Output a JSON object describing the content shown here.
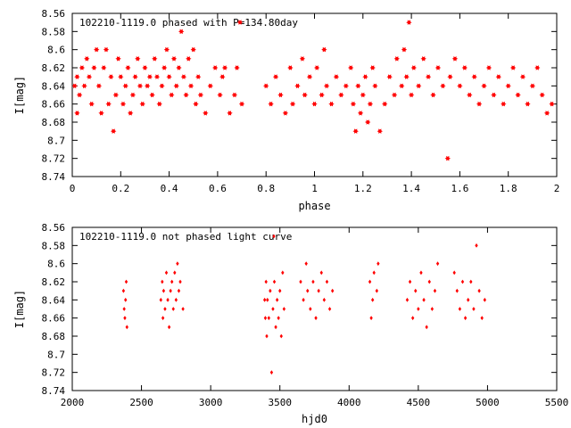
{
  "chart_data": [
    {
      "type": "scatter",
      "title": "102210-1119.0 phased with P=134.80day",
      "xlabel": "phase",
      "ylabel": "I[mag]",
      "xlim": [
        0,
        2
      ],
      "ylim": [
        8.74,
        8.56
      ],
      "y_inverted": true,
      "x_ticks": [
        0,
        0.2,
        0.4,
        0.6,
        0.8,
        1,
        1.2,
        1.4,
        1.6,
        1.8,
        2
      ],
      "x_tick_labels": [
        "0",
        "0.2",
        "0.4",
        "0.6",
        "0.8",
        "1",
        "1.2",
        "1.4",
        "1.6",
        "1.8",
        "2"
      ],
      "y_ticks": [
        8.56,
        8.58,
        8.6,
        8.62,
        8.64,
        8.66,
        8.68,
        8.7,
        8.72,
        8.74
      ],
      "y_tick_labels": [
        "8.56",
        "8.58",
        "8.6",
        "8.62",
        "8.64",
        "8.66",
        "8.68",
        "8.7",
        "8.72",
        "8.74"
      ],
      "marker_color": "#ff0000",
      "marker": "star",
      "legend_placement": "top-left",
      "points": [
        [
          0.01,
          8.64
        ],
        [
          0.02,
          8.63
        ],
        [
          0.02,
          8.67
        ],
        [
          0.03,
          8.65
        ],
        [
          0.04,
          8.62
        ],
        [
          0.05,
          8.64
        ],
        [
          0.06,
          8.61
        ],
        [
          0.07,
          8.63
        ],
        [
          0.08,
          8.66
        ],
        [
          0.09,
          8.62
        ],
        [
          0.1,
          8.6
        ],
        [
          0.11,
          8.64
        ],
        [
          0.12,
          8.67
        ],
        [
          0.13,
          8.62
        ],
        [
          0.14,
          8.6
        ],
        [
          0.15,
          8.66
        ],
        [
          0.16,
          8.63
        ],
        [
          0.17,
          8.69
        ],
        [
          0.18,
          8.65
        ],
        [
          0.19,
          8.61
        ],
        [
          0.2,
          8.63
        ],
        [
          0.21,
          8.66
        ],
        [
          0.22,
          8.64
        ],
        [
          0.23,
          8.62
        ],
        [
          0.24,
          8.67
        ],
        [
          0.25,
          8.65
        ],
        [
          0.26,
          8.63
        ],
        [
          0.27,
          8.61
        ],
        [
          0.28,
          8.64
        ],
        [
          0.29,
          8.66
        ],
        [
          0.3,
          8.62
        ],
        [
          0.31,
          8.64
        ],
        [
          0.32,
          8.63
        ],
        [
          0.33,
          8.65
        ],
        [
          0.34,
          8.61
        ],
        [
          0.35,
          8.63
        ],
        [
          0.36,
          8.66
        ],
        [
          0.37,
          8.64
        ],
        [
          0.38,
          8.62
        ],
        [
          0.39,
          8.6
        ],
        [
          0.4,
          8.63
        ],
        [
          0.41,
          8.65
        ],
        [
          0.42,
          8.61
        ],
        [
          0.43,
          8.64
        ],
        [
          0.44,
          8.62
        ],
        [
          0.45,
          8.58
        ],
        [
          0.46,
          8.63
        ],
        [
          0.47,
          8.65
        ],
        [
          0.48,
          8.61
        ],
        [
          0.49,
          8.64
        ],
        [
          0.5,
          8.6
        ],
        [
          0.51,
          8.66
        ],
        [
          0.52,
          8.63
        ],
        [
          0.53,
          8.65
        ],
        [
          0.55,
          8.67
        ],
        [
          0.57,
          8.64
        ],
        [
          0.59,
          8.62
        ],
        [
          0.61,
          8.65
        ],
        [
          0.62,
          8.63
        ],
        [
          0.63,
          8.62
        ],
        [
          0.65,
          8.67
        ],
        [
          0.67,
          8.65
        ],
        [
          0.68,
          8.62
        ],
        [
          0.7,
          8.66
        ],
        [
          0.8,
          8.64
        ],
        [
          0.82,
          8.66
        ],
        [
          0.84,
          8.63
        ],
        [
          0.86,
          8.65
        ],
        [
          0.88,
          8.67
        ],
        [
          0.9,
          8.62
        ],
        [
          0.91,
          8.66
        ],
        [
          0.93,
          8.64
        ],
        [
          0.95,
          8.61
        ],
        [
          0.96,
          8.65
        ],
        [
          0.98,
          8.63
        ],
        [
          1.0,
          8.66
        ],
        [
          1.01,
          8.62
        ],
        [
          1.03,
          8.65
        ],
        [
          1.04,
          8.6
        ],
        [
          1.05,
          8.64
        ],
        [
          1.07,
          8.66
        ],
        [
          1.09,
          8.63
        ],
        [
          1.11,
          8.65
        ],
        [
          1.13,
          8.64
        ],
        [
          1.15,
          8.62
        ],
        [
          1.16,
          8.66
        ],
        [
          1.17,
          8.69
        ],
        [
          1.18,
          8.64
        ],
        [
          1.19,
          8.67
        ],
        [
          1.2,
          8.65
        ],
        [
          1.21,
          8.63
        ],
        [
          1.22,
          8.68
        ],
        [
          1.23,
          8.66
        ],
        [
          1.24,
          8.62
        ],
        [
          1.25,
          8.64
        ],
        [
          1.27,
          8.69
        ],
        [
          1.29,
          8.66
        ],
        [
          1.31,
          8.63
        ],
        [
          1.33,
          8.65
        ],
        [
          1.34,
          8.61
        ],
        [
          1.36,
          8.64
        ],
        [
          1.37,
          8.6
        ],
        [
          1.38,
          8.63
        ],
        [
          1.39,
          8.57
        ],
        [
          1.4,
          8.65
        ],
        [
          1.41,
          8.62
        ],
        [
          1.43,
          8.64
        ],
        [
          1.45,
          8.61
        ],
        [
          1.47,
          8.63
        ],
        [
          1.49,
          8.65
        ],
        [
          1.51,
          8.62
        ],
        [
          1.53,
          8.64
        ],
        [
          1.55,
          8.72
        ],
        [
          1.56,
          8.63
        ],
        [
          1.58,
          8.61
        ],
        [
          1.6,
          8.64
        ],
        [
          1.62,
          8.62
        ],
        [
          1.64,
          8.65
        ],
        [
          1.66,
          8.63
        ],
        [
          1.68,
          8.66
        ],
        [
          1.7,
          8.64
        ],
        [
          1.72,
          8.62
        ],
        [
          1.74,
          8.65
        ],
        [
          1.76,
          8.63
        ],
        [
          1.78,
          8.66
        ],
        [
          1.8,
          8.64
        ],
        [
          1.82,
          8.62
        ],
        [
          1.84,
          8.65
        ],
        [
          1.86,
          8.63
        ],
        [
          1.88,
          8.66
        ],
        [
          1.9,
          8.64
        ],
        [
          1.92,
          8.62
        ],
        [
          1.94,
          8.65
        ],
        [
          1.96,
          8.67
        ],
        [
          1.98,
          8.66
        ]
      ]
    },
    {
      "type": "scatter",
      "title": "102210-1119.0 not phased light curve",
      "xlabel": "hjd0",
      "ylabel": "I[mag]",
      "xlim": [
        2000,
        5500
      ],
      "ylim": [
        8.74,
        8.56
      ],
      "y_inverted": true,
      "x_ticks": [
        2000,
        2500,
        3000,
        3500,
        4000,
        4500,
        5000,
        5500
      ],
      "x_tick_labels": [
        "2000",
        "2500",
        "3000",
        "3500",
        "4000",
        "4500",
        "5000",
        "5500"
      ],
      "y_ticks": [
        8.56,
        8.58,
        8.6,
        8.62,
        8.64,
        8.66,
        8.68,
        8.7,
        8.72,
        8.74
      ],
      "y_tick_labels": [
        "8.56",
        "8.58",
        "8.6",
        "8.62",
        "8.64",
        "8.66",
        "8.68",
        "8.7",
        "8.72",
        "8.74"
      ],
      "marker_color": "#ff0000",
      "marker": "diamond",
      "legend_placement": "top-left",
      "points": [
        [
          2370,
          8.63
        ],
        [
          2375,
          8.65
        ],
        [
          2380,
          8.66
        ],
        [
          2385,
          8.64
        ],
        [
          2390,
          8.62
        ],
        [
          2395,
          8.67
        ],
        [
          2640,
          8.64
        ],
        [
          2650,
          8.62
        ],
        [
          2655,
          8.66
        ],
        [
          2660,
          8.63
        ],
        [
          2670,
          8.65
        ],
        [
          2680,
          8.61
        ],
        [
          2690,
          8.64
        ],
        [
          2700,
          8.67
        ],
        [
          2710,
          8.63
        ],
        [
          2720,
          8.62
        ],
        [
          2730,
          8.65
        ],
        [
          2740,
          8.61
        ],
        [
          2750,
          8.64
        ],
        [
          2760,
          8.6
        ],
        [
          2770,
          8.63
        ],
        [
          2780,
          8.62
        ],
        [
          2800,
          8.65
        ],
        [
          3390,
          8.64
        ],
        [
          3395,
          8.66
        ],
        [
          3400,
          8.62
        ],
        [
          3405,
          8.68
        ],
        [
          3410,
          8.64
        ],
        [
          3420,
          8.66
        ],
        [
          3430,
          8.63
        ],
        [
          3440,
          8.72
        ],
        [
          3450,
          8.65
        ],
        [
          3460,
          8.62
        ],
        [
          3470,
          8.67
        ],
        [
          3480,
          8.64
        ],
        [
          3490,
          8.66
        ],
        [
          3500,
          8.63
        ],
        [
          3510,
          8.68
        ],
        [
          3520,
          8.61
        ],
        [
          3530,
          8.65
        ],
        [
          3650,
          8.62
        ],
        [
          3670,
          8.64
        ],
        [
          3690,
          8.6
        ],
        [
          3700,
          8.63
        ],
        [
          3720,
          8.65
        ],
        [
          3740,
          8.62
        ],
        [
          3760,
          8.66
        ],
        [
          3780,
          8.63
        ],
        [
          3800,
          8.61
        ],
        [
          3820,
          8.64
        ],
        [
          3840,
          8.62
        ],
        [
          3860,
          8.65
        ],
        [
          3880,
          8.63
        ],
        [
          4150,
          8.62
        ],
        [
          4160,
          8.66
        ],
        [
          4170,
          8.64
        ],
        [
          4180,
          8.61
        ],
        [
          4200,
          8.63
        ],
        [
          4210,
          8.6
        ],
        [
          4420,
          8.64
        ],
        [
          4440,
          8.62
        ],
        [
          4460,
          8.66
        ],
        [
          4480,
          8.63
        ],
        [
          4500,
          8.65
        ],
        [
          4520,
          8.61
        ],
        [
          4540,
          8.64
        ],
        [
          4560,
          8.67
        ],
        [
          4580,
          8.62
        ],
        [
          4600,
          8.65
        ],
        [
          4620,
          8.63
        ],
        [
          4640,
          8.6
        ],
        [
          4760,
          8.61
        ],
        [
          4780,
          8.63
        ],
        [
          4800,
          8.65
        ],
        [
          4820,
          8.62
        ],
        [
          4840,
          8.66
        ],
        [
          4860,
          8.64
        ],
        [
          4880,
          8.62
        ],
        [
          4900,
          8.65
        ],
        [
          4920,
          8.58
        ],
        [
          4940,
          8.63
        ],
        [
          4960,
          8.66
        ],
        [
          4980,
          8.64
        ]
      ]
    }
  ]
}
